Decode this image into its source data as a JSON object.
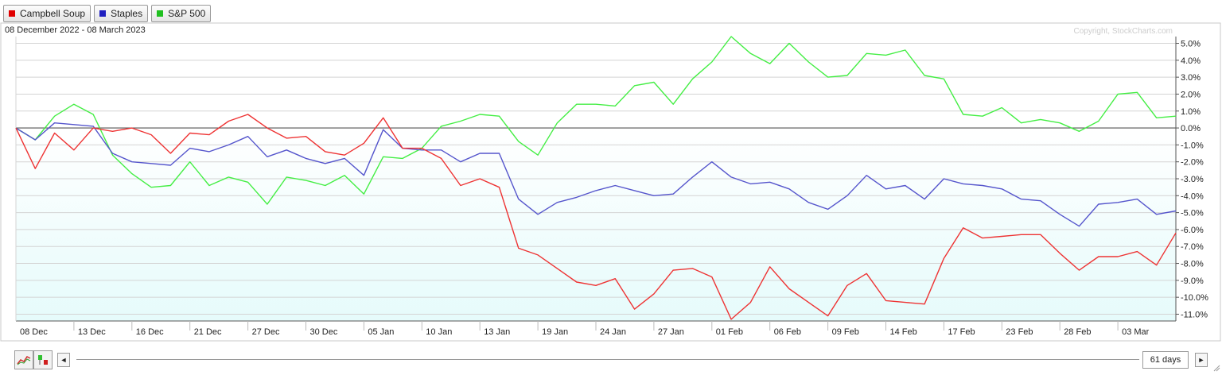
{
  "legend": {
    "items": [
      {
        "label": "Campbell Soup",
        "color": "#e00000"
      },
      {
        "label": "Staples",
        "color": "#2020c0"
      },
      {
        "label": "S&P 500",
        "color": "#20c020"
      }
    ]
  },
  "chart_data": {
    "type": "line",
    "date_range": "08 December 2022 - 08 March 2023",
    "watermark": "Copyright, StockCharts.com",
    "x_tick_labels": [
      "08 Dec",
      "13 Dec",
      "16 Dec",
      "21 Dec",
      "27 Dec",
      "30 Dec",
      "05 Jan",
      "10 Jan",
      "13 Jan",
      "19 Jan",
      "24 Jan",
      "27 Jan",
      "01 Feb",
      "06 Feb",
      "09 Feb",
      "14 Feb",
      "17 Feb",
      "23 Feb",
      "28 Feb",
      "03 Mar"
    ],
    "y_tick_values": [
      5,
      4,
      3,
      2,
      1,
      0,
      -1,
      -2,
      -3,
      -4,
      -5,
      -6,
      -7,
      -8,
      -9,
      -10,
      -11
    ],
    "y_tick_labels": [
      "5.0%",
      "4.0%",
      "3.0%",
      "2.0%",
      "1.0%",
      "0.0%",
      "-1.0%",
      "-2.0%",
      "-3.0%",
      "-4.0%",
      "-5.0%",
      "-6.0%",
      "-7.0%",
      "-8.0%",
      "-9.0%",
      "-10.0%",
      "-11.0%"
    ],
    "ylim": [
      -11.4,
      5.4
    ],
    "grid": true,
    "series": [
      {
        "name": "Campbell Soup",
        "color": "#ee3333",
        "values": [
          0,
          -2.4,
          -0.3,
          -1.3,
          0,
          -0.2,
          0,
          -0.4,
          -1.5,
          -0.3,
          -0.4,
          0.4,
          0.8,
          0,
          -0.6,
          -0.5,
          -1.4,
          -1.6,
          -0.9,
          0.6,
          -1.2,
          -1.2,
          -1.8,
          -3.4,
          -3.0,
          -3.5,
          -7.1,
          -7.5,
          -8.3,
          -9.1,
          -9.3,
          -8.9,
          -10.7,
          -9.8,
          -8.4,
          -8.3,
          -8.8,
          -11.3,
          -10.3,
          -8.2,
          -9.5,
          -10.3,
          -11.1,
          -9.3,
          -8.6,
          -10.2,
          -10.3,
          -10.4,
          -7.7,
          -5.9,
          -6.5,
          -6.4,
          -6.3,
          -6.3,
          -7.4,
          -8.4,
          -7.6,
          -7.6,
          -7.3,
          -8.1,
          -6.2
        ]
      },
      {
        "name": "Staples",
        "color": "#5555cc",
        "values": [
          0,
          -0.7,
          0.3,
          0.2,
          0.1,
          -1.5,
          -2.0,
          -2.1,
          -2.2,
          -1.2,
          -1.4,
          -1.0,
          -0.5,
          -1.7,
          -1.3,
          -1.8,
          -2.1,
          -1.8,
          -2.8,
          -0.1,
          -1.2,
          -1.3,
          -1.3,
          -2.0,
          -1.5,
          -1.5,
          -4.2,
          -5.1,
          -4.4,
          -4.1,
          -3.7,
          -3.4,
          -3.7,
          -4.0,
          -3.9,
          -2.9,
          -2.0,
          -2.9,
          -3.3,
          -3.2,
          -3.6,
          -4.4,
          -4.8,
          -4.0,
          -2.8,
          -3.6,
          -3.4,
          -4.2,
          -3.0,
          -3.3,
          -3.4,
          -3.6,
          -4.2,
          -4.3,
          -5.1,
          -5.8,
          -4.5,
          -4.4,
          -4.2,
          -5.1,
          -4.9
        ]
      },
      {
        "name": "S&P 500",
        "color": "#44ee44",
        "values": [
          0,
          -0.7,
          0.7,
          1.4,
          0.8,
          -1.6,
          -2.7,
          -3.5,
          -3.4,
          -2.0,
          -3.4,
          -2.9,
          -3.2,
          -4.5,
          -2.9,
          -3.1,
          -3.4,
          -2.8,
          -3.9,
          -1.7,
          -1.8,
          -1.2,
          0.1,
          0.4,
          0.8,
          0.7,
          -0.8,
          -1.6,
          0.3,
          1.4,
          1.4,
          1.3,
          2.5,
          2.7,
          1.4,
          2.9,
          3.9,
          5.4,
          4.4,
          3.8,
          5.0,
          3.9,
          3.0,
          3.1,
          4.4,
          4.3,
          4.6,
          3.1,
          2.9,
          0.8,
          0.7,
          1.2,
          0.3,
          0.5,
          0.3,
          -0.2,
          0.4,
          2.0,
          2.1,
          0.6,
          0.7
        ]
      }
    ]
  },
  "controls": {
    "days_label": "61 days",
    "left_arrow": "◄",
    "right_arrow": "►"
  }
}
